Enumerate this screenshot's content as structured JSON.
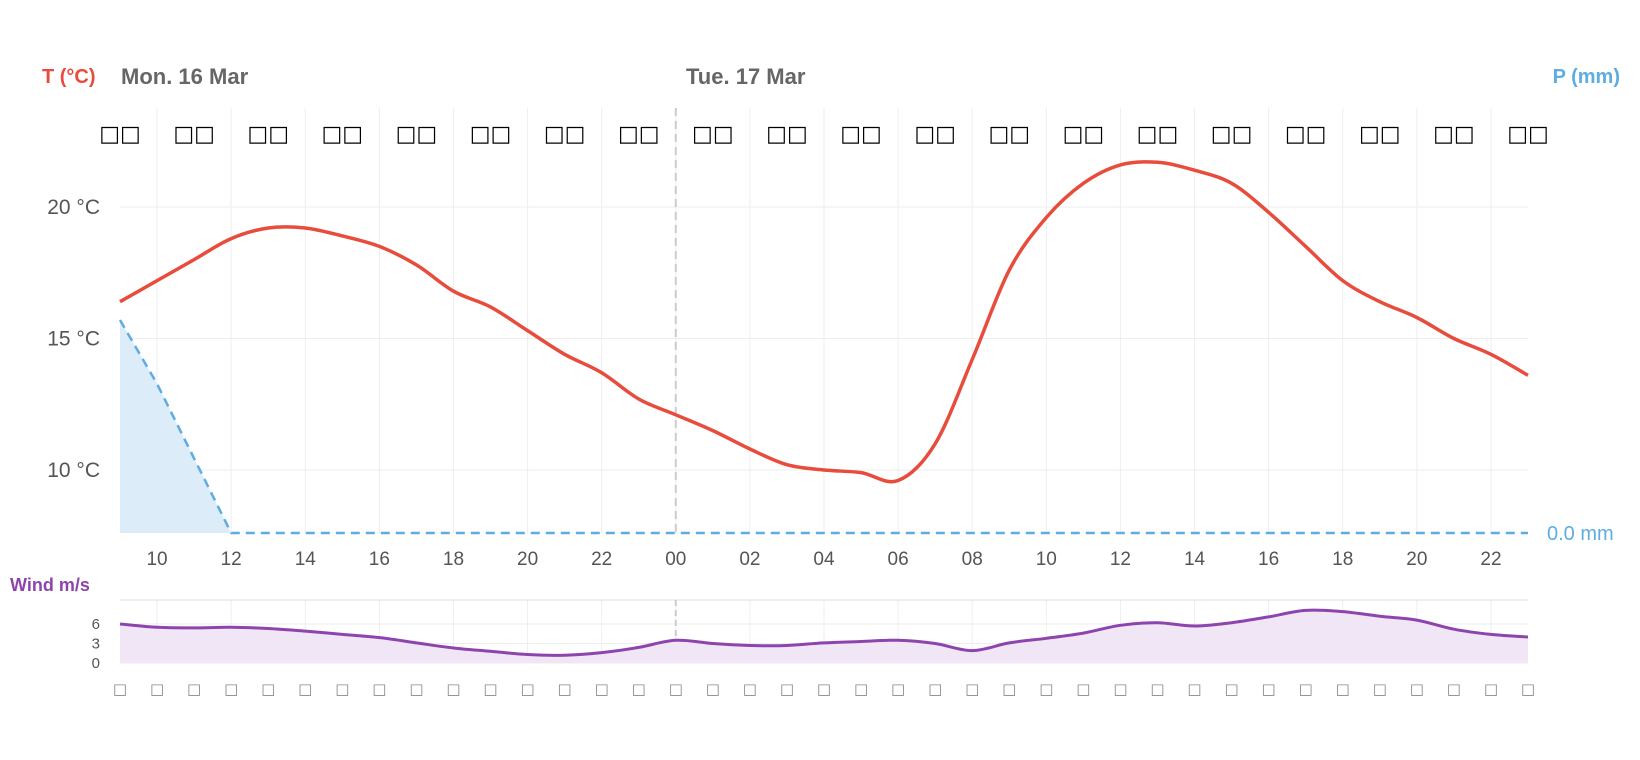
{
  "header": {
    "t_unit": "T (°C)",
    "day1": "Mon. 16 Mar",
    "day2": "Tue. 17 Mar",
    "p_unit": "P (mm)"
  },
  "wind_header": {
    "unit": "Wind m/s"
  },
  "colors": {
    "temperature": "#e74c3c",
    "precipitation": "#5dade2",
    "precip_fill": "#dcecf8",
    "wind": "#8e44ad",
    "wind_fill": "#f1e6f6",
    "grid": "#eeeeee",
    "day_divider": "#cccccc"
  },
  "weather_icons": {
    "count": 20,
    "glyph_name": "missing-glyph-icon",
    "glyph": "□□"
  },
  "wind_direction_icons": {
    "count": 39,
    "glyph_name": "missing-glyph-icon",
    "glyph": "□"
  },
  "chart_data": [
    {
      "type": "line",
      "title": "",
      "series": [
        {
          "name": "T (°C)",
          "x": [
            "09",
            "10",
            "11",
            "12",
            "13",
            "14",
            "15",
            "16",
            "17",
            "18",
            "19",
            "20",
            "21",
            "22",
            "23",
            "00",
            "01",
            "02",
            "03",
            "04",
            "05",
            "06",
            "07",
            "08",
            "09",
            "10",
            "11",
            "12",
            "13",
            "14",
            "15",
            "16",
            "17",
            "18",
            "19",
            "20",
            "21",
            "22",
            "23"
          ],
          "values": [
            16.4,
            17.2,
            18.0,
            18.8,
            19.2,
            19.2,
            18.9,
            18.5,
            17.8,
            16.8,
            16.2,
            15.3,
            14.4,
            13.7,
            12.7,
            12.1,
            11.5,
            10.8,
            10.2,
            10.0,
            9.9,
            9.6,
            11.0,
            14.2,
            17.6,
            19.6,
            20.9,
            21.6,
            21.7,
            21.4,
            20.9,
            19.8,
            18.5,
            17.2,
            16.4,
            15.8,
            15.0,
            14.4,
            13.6
          ]
        },
        {
          "name": "P (mm)",
          "x": [
            "09",
            "10",
            "11",
            "12",
            "13",
            "14",
            "15",
            "16",
            "17",
            "18",
            "19",
            "20",
            "21",
            "22",
            "23",
            "00",
            "01",
            "02",
            "03",
            "04",
            "05",
            "06",
            "07",
            "08",
            "09",
            "10",
            "11",
            "12",
            "13",
            "14",
            "15",
            "16",
            "17",
            "18",
            "19",
            "20",
            "21",
            "22",
            "23"
          ],
          "values": [
            1.0,
            0.7,
            0.35,
            0.0,
            0,
            0,
            0,
            0,
            0,
            0,
            0,
            0,
            0,
            0,
            0,
            0,
            0,
            0,
            0,
            0,
            0,
            0,
            0,
            0,
            0,
            0,
            0,
            0,
            0,
            0,
            0,
            0,
            0,
            0,
            0,
            0,
            0,
            0,
            0
          ],
          "end_label": "0.0 mm"
        }
      ],
      "y_ticks": [
        "10 °C",
        "15 °C",
        "20 °C"
      ],
      "y_tick_values": [
        10,
        15,
        20
      ],
      "x_tick_labels": [
        "10",
        "12",
        "14",
        "16",
        "18",
        "20",
        "22",
        "00",
        "02",
        "04",
        "06",
        "08",
        "10",
        "12",
        "14",
        "16",
        "18",
        "20",
        "22"
      ],
      "grid": true
    },
    {
      "type": "area",
      "title": "",
      "series": [
        {
          "name": "Wind m/s",
          "values": [
            6.0,
            5.5,
            5.4,
            5.5,
            5.3,
            4.9,
            4.4,
            3.9,
            3.1,
            2.3,
            1.8,
            1.3,
            1.2,
            1.6,
            2.4,
            3.5,
            3.0,
            2.7,
            2.7,
            3.1,
            3.3,
            3.5,
            3.0,
            1.9,
            3.1,
            3.8,
            4.6,
            5.8,
            6.2,
            5.7,
            6.2,
            7.1,
            8.1,
            7.9,
            7.2,
            6.6,
            5.2,
            4.4,
            4.0
          ]
        }
      ],
      "y_ticks": [
        "0",
        "3",
        "6"
      ],
      "y_tick_values": [
        0,
        3,
        6
      ],
      "grid": true
    }
  ]
}
